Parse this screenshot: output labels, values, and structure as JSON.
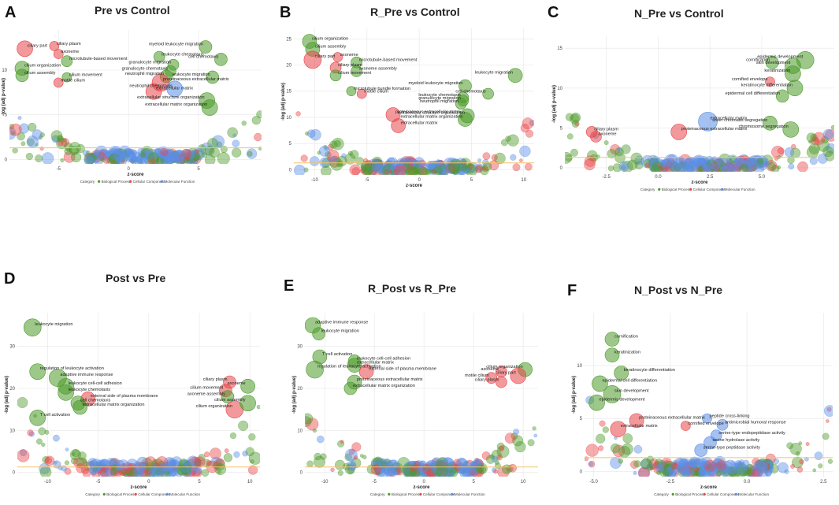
{
  "colors": {
    "biological_process": "#4d9a2a",
    "cellular_component": "#e8464a",
    "molecular_function": "#5b8ee6",
    "threshold": "#f5c36b"
  },
  "chart_data": [
    {
      "id": "A",
      "type": "scatter",
      "title": "Pre vs Control",
      "xlabel": "z-score",
      "ylabel": "-log (adj p-value)",
      "xlim": [
        -8.5,
        9.5
      ],
      "ylim": [
        -0.5,
        14.5
      ],
      "xticks": [
        -5,
        0,
        5
      ],
      "yticks": [
        0,
        5,
        10
      ],
      "threshold": 1.3,
      "legend_title": "Category",
      "legend": [
        "Biological Process",
        "Cellular Component",
        "Molecular Function"
      ],
      "points": [
        {
          "x": -7.4,
          "y": 12.4,
          "s": 10,
          "c": "cellular_component",
          "label": "ciliary part"
        },
        {
          "x": -5.3,
          "y": 12.7,
          "s": 6,
          "c": "cellular_component",
          "label": "ciliary plasm"
        },
        {
          "x": -5.0,
          "y": 11.8,
          "s": 6,
          "c": "cellular_component",
          "label": "axoneme"
        },
        {
          "x": -4.4,
          "y": 11.0,
          "s": 7,
          "c": "biological_process",
          "label": "microtubule-based movement"
        },
        {
          "x": -7.6,
          "y": 10.2,
          "s": 9,
          "c": "biological_process",
          "label": "cilium organization"
        },
        {
          "x": -7.6,
          "y": 9.4,
          "s": 8,
          "c": "biological_process",
          "label": "cilium assembly"
        },
        {
          "x": -4.4,
          "y": 9.2,
          "s": 6,
          "c": "biological_process",
          "label": "cilium movement"
        },
        {
          "x": -5.0,
          "y": 8.6,
          "s": 6,
          "c": "cellular_component",
          "label": "motile cilium"
        },
        {
          "x": 5.5,
          "y": 12.6,
          "s": 8,
          "c": "biological_process",
          "label": "myeloid leukocyte migration"
        },
        {
          "x": 2.2,
          "y": 11.5,
          "s": 7,
          "c": "biological_process",
          "label": "leukocyte chemotaxis"
        },
        {
          "x": 6.6,
          "y": 11.2,
          "s": 8,
          "c": "biological_process",
          "label": "cell chemotaxis"
        },
        {
          "x": 3.2,
          "y": 10.6,
          "s": 7,
          "c": "biological_process",
          "label": "granulocyte migration"
        },
        {
          "x": 3.0,
          "y": 9.9,
          "s": 7,
          "c": "biological_process",
          "label": "granulocyte chemotaxis"
        },
        {
          "x": 2.7,
          "y": 9.3,
          "s": 8,
          "c": "biological_process",
          "label": "neutrophil migration"
        },
        {
          "x": 6.0,
          "y": 9.2,
          "s": 8,
          "c": "biological_process",
          "label": "leukocyte migration"
        },
        {
          "x": 2.3,
          "y": 8.6,
          "s": 11,
          "c": "cellular_component",
          "label": "proteinaceous extracellular matrix"
        },
        {
          "x": 3.3,
          "y": 7.9,
          "s": 10,
          "c": "molecular_function",
          "label": "neutrophil chemotaxis"
        },
        {
          "x": 1.8,
          "y": 7.6,
          "s": 10,
          "c": "cellular_component",
          "label": "extracellular matrix"
        },
        {
          "x": 5.6,
          "y": 6.6,
          "s": 10,
          "c": "biological_process",
          "label": "extracellular structure organization"
        },
        {
          "x": 5.8,
          "y": 5.8,
          "s": 10,
          "c": "biological_process",
          "label": "extracellular matrix organization"
        }
      ]
    },
    {
      "id": "B",
      "type": "scatter",
      "title": "R_Pre vs Control",
      "xlabel": "z-score",
      "ylabel": "-log (adj p-value)",
      "xlim": [
        -12,
        11
      ],
      "ylim": [
        -1,
        27
      ],
      "xticks": [
        -10,
        -5,
        0,
        5,
        10
      ],
      "yticks": [
        0,
        5,
        10,
        15,
        20,
        25
      ],
      "threshold": 1.3,
      "legend_title": "Category",
      "legend": [
        "Biological Process",
        "Cellular Component",
        "Molecular Function"
      ],
      "points": [
        {
          "x": -10.5,
          "y": 24.5,
          "s": 9,
          "c": "biological_process",
          "label": "cilium organization"
        },
        {
          "x": -10.2,
          "y": 23.0,
          "s": 9,
          "c": "biological_process",
          "label": "cilium assembly"
        },
        {
          "x": -7.8,
          "y": 21.5,
          "s": 6,
          "c": "cellular_component",
          "label": "axoneme"
        },
        {
          "x": -6.0,
          "y": 20.5,
          "s": 7,
          "c": "biological_process",
          "label": "microtubule-based movement"
        },
        {
          "x": -10.2,
          "y": 21.0,
          "s": 11,
          "c": "cellular_component",
          "label": "ciliary part"
        },
        {
          "x": -8.0,
          "y": 19.5,
          "s": 7,
          "c": "cellular_component",
          "label": "ciliary plasm"
        },
        {
          "x": -6.0,
          "y": 18.8,
          "s": 7,
          "c": "biological_process",
          "label": "axoneme assembly"
        },
        {
          "x": -8.0,
          "y": 18.0,
          "s": 7,
          "c": "biological_process",
          "label": "cilium movement"
        },
        {
          "x": -6.5,
          "y": 15.0,
          "s": 6,
          "c": "biological_process",
          "label": "microtubule bundle formation"
        },
        {
          "x": -5.5,
          "y": 14.5,
          "s": 6,
          "c": "cellular_component",
          "label": "motile cilium"
        },
        {
          "x": 9.2,
          "y": 18.0,
          "s": 9,
          "c": "biological_process",
          "label": "leukocyte migration"
        },
        {
          "x": 4.4,
          "y": 16.0,
          "s": 8,
          "c": "biological_process",
          "label": "myeloid leukocyte migration"
        },
        {
          "x": 6.6,
          "y": 14.5,
          "s": 7,
          "c": "biological_process",
          "label": "cell chemotaxis"
        },
        {
          "x": 4.2,
          "y": 13.8,
          "s": 7,
          "c": "biological_process",
          "label": "leukocyte chemotaxis"
        },
        {
          "x": 4.2,
          "y": 13.2,
          "s": 7,
          "c": "biological_process",
          "label": "granulocyte migration"
        },
        {
          "x": 4.0,
          "y": 12.6,
          "s": 7,
          "c": "biological_process",
          "label": "neutrophil migration"
        },
        {
          "x": -2.5,
          "y": 10.5,
          "s": 9,
          "c": "cellular_component",
          "label": "proteinaceous extracellular matrix"
        },
        {
          "x": 4.6,
          "y": 10.3,
          "s": 9,
          "c": "biological_process",
          "label": "extracellular structure organization"
        },
        {
          "x": 4.4,
          "y": 9.6,
          "s": 9,
          "c": "biological_process",
          "label": "extracellular matrix organization"
        },
        {
          "x": -2.0,
          "y": 8.4,
          "s": 9,
          "c": "cellular_component",
          "label": "extracellular matrix"
        }
      ]
    },
    {
      "id": "C",
      "type": "scatter",
      "title": "N_Pre vs Control",
      "xlabel": "z-score",
      "ylabel": "-log (adj p-value)",
      "xlim": [
        -4.5,
        8.5
      ],
      "ylim": [
        -0.5,
        16.5
      ],
      "xticks": [
        -2.5,
        0.0,
        2.5,
        5.0
      ],
      "yticks": [
        0,
        5,
        10,
        15
      ],
      "threshold": 1.3,
      "legend_title": "Category",
      "legend": [
        "Biological Process",
        "Cellular Component",
        "Molecular Function"
      ],
      "points": [
        {
          "x": 7.1,
          "y": 13.5,
          "s": 11,
          "c": "biological_process",
          "label": "epidermis development"
        },
        {
          "x": 6.5,
          "y": 12.8,
          "s": 10,
          "c": "biological_process",
          "label": "skin development"
        },
        {
          "x": 5.5,
          "y": 13.2,
          "s": 8,
          "c": "biological_process",
          "label": "cornification"
        },
        {
          "x": 6.5,
          "y": 11.8,
          "s": 10,
          "c": "biological_process",
          "label": "keratinization"
        },
        {
          "x": 5.4,
          "y": 10.8,
          "s": 6,
          "c": "cellular_component",
          "label": "cornified envelope"
        },
        {
          "x": 6.6,
          "y": 10.0,
          "s": 10,
          "c": "biological_process",
          "label": "keratinocyte differentiation"
        },
        {
          "x": 6.0,
          "y": 9.0,
          "s": 8,
          "c": "biological_process",
          "label": "epidermal cell differentiation"
        },
        {
          "x": 5.4,
          "y": 5.6,
          "s": 9,
          "c": "biological_process",
          "label": "sister chromatid segregation"
        },
        {
          "x": 6.4,
          "y": 4.8,
          "s": 10,
          "c": "biological_process",
          "label": "chromosome segregation"
        },
        {
          "x": 2.4,
          "y": 5.8,
          "s": 12,
          "c": "molecular_function",
          "label": "extracellular matrix"
        },
        {
          "x": 1.0,
          "y": 4.5,
          "s": 10,
          "c": "cellular_component",
          "label": "proteinaceous extracellular matrix"
        },
        {
          "x": -3.2,
          "y": 4.5,
          "s": 7,
          "c": "cellular_component",
          "label": "ciliary plasm"
        },
        {
          "x": -3.0,
          "y": 3.9,
          "s": 7,
          "c": "cellular_component",
          "label": "axoneme"
        }
      ]
    },
    {
      "id": "D",
      "type": "scatter",
      "title": "Post vs Pre",
      "xlabel": "z-score",
      "ylabel": "-log (adj p-value)",
      "xlim": [
        -13,
        11
      ],
      "ylim": [
        -1,
        38
      ],
      "xticks": [
        -10,
        -5,
        0,
        5,
        10
      ],
      "yticks": [
        0,
        10,
        20,
        30
      ],
      "threshold": 1.3,
      "legend_title": "Category",
      "legend": [
        "Biological Process",
        "Cellular Component",
        "Molecular Function"
      ],
      "points": [
        {
          "x": -11.5,
          "y": 34.5,
          "s": 11,
          "c": "biological_process",
          "label": "leukocyte migration"
        },
        {
          "x": -11.0,
          "y": 24.0,
          "s": 10,
          "c": "biological_process",
          "label": "regulation of leukocyte activation"
        },
        {
          "x": -9.0,
          "y": 22.5,
          "s": 11,
          "c": "biological_process",
          "label": "adaptive immune response"
        },
        {
          "x": -8.2,
          "y": 20.5,
          "s": 10,
          "c": "biological_process",
          "label": "leukocyte cell-cell adhesion"
        },
        {
          "x": -8.2,
          "y": 19.0,
          "s": 10,
          "c": "biological_process",
          "label": "leukocyte chemotaxis"
        },
        {
          "x": -6.0,
          "y": 17.5,
          "s": 9,
          "c": "cellular_component",
          "label": "external side of plasma membrane"
        },
        {
          "x": -7.0,
          "y": 16.5,
          "s": 9,
          "c": "biological_process",
          "label": "cell chemotaxis"
        },
        {
          "x": -6.8,
          "y": 15.5,
          "s": 9,
          "c": "biological_process",
          "label": "extracellular matrix organization"
        },
        {
          "x": -11.0,
          "y": 13.0,
          "s": 10,
          "c": "biological_process",
          "label": "T cell activation"
        },
        {
          "x": 8.0,
          "y": 21.5,
          "s": 8,
          "c": "cellular_component",
          "label": "ciliary plasm"
        },
        {
          "x": 9.8,
          "y": 20.5,
          "s": 9,
          "c": "biological_process",
          "label": "axoneme"
        },
        {
          "x": 7.6,
          "y": 19.5,
          "s": 8,
          "c": "cellular_component",
          "label": "cilium movement"
        },
        {
          "x": 7.8,
          "y": 18.0,
          "s": 8,
          "c": "biological_process",
          "label": "axoneme assembly"
        },
        {
          "x": 8.5,
          "y": 15.0,
          "s": 11,
          "c": "cellular_component",
          "label": "cilium organization"
        },
        {
          "x": 9.8,
          "y": 16.5,
          "s": 10,
          "c": "biological_process",
          "label": "cilium assembly"
        }
      ]
    },
    {
      "id": "E",
      "type": "scatter",
      "title": "R_Post vs R_Pre",
      "xlabel": "z-score",
      "ylabel": "-log (adj p-value)",
      "xlim": [
        -12,
        11.5
      ],
      "ylim": [
        -1,
        38
      ],
      "xticks": [
        -10,
        -5,
        0,
        5,
        10
      ],
      "yticks": [
        0,
        10,
        20,
        30
      ],
      "threshold": 1.3,
      "legend_title": "Category",
      "legend": [
        "Biological Process",
        "Cellular Component",
        "Molecular Function"
      ],
      "points": [
        {
          "x": -11.2,
          "y": 35.0,
          "s": 10,
          "c": "biological_process",
          "label": "adaptive immune response"
        },
        {
          "x": -10.6,
          "y": 33.0,
          "s": 8,
          "c": "biological_process",
          "label": "leukocyte migration"
        },
        {
          "x": -10.5,
          "y": 27.5,
          "s": 9,
          "c": "biological_process",
          "label": "T cell activation"
        },
        {
          "x": -7.0,
          "y": 26.5,
          "s": 8,
          "c": "biological_process",
          "label": "leukocyte cell-cell adhesion"
        },
        {
          "x": -7.0,
          "y": 25.5,
          "s": 9,
          "c": "biological_process",
          "label": "extracellular matrix"
        },
        {
          "x": -11.0,
          "y": 24.5,
          "s": 11,
          "c": "biological_process",
          "label": "regulation of leukocyte activation"
        },
        {
          "x": -5.8,
          "y": 24.0,
          "s": 9,
          "c": "cellular_component",
          "label": "external side of plasma membrane"
        },
        {
          "x": -7.0,
          "y": 21.5,
          "s": 9,
          "c": "biological_process",
          "label": "proteinaceous extracellular matrix"
        },
        {
          "x": -7.4,
          "y": 20.0,
          "s": 8,
          "c": "biological_process",
          "label": "extracellular matrix organization"
        },
        {
          "x": 7.8,
          "y": 24.0,
          "s": 7,
          "c": "cellular_component",
          "label": "axoneme"
        },
        {
          "x": 10.2,
          "y": 24.5,
          "s": 9,
          "c": "biological_process",
          "label": "cilium organization"
        },
        {
          "x": 9.5,
          "y": 23.0,
          "s": 10,
          "c": "cellular_component",
          "label": "ciliary part"
        },
        {
          "x": 6.8,
          "y": 22.5,
          "s": 7,
          "c": "cellular_component",
          "label": "motile cilium"
        },
        {
          "x": 7.8,
          "y": 21.5,
          "s": 7,
          "c": "cellular_component",
          "label": "ciliary plasm"
        }
      ]
    },
    {
      "id": "F",
      "type": "scatter",
      "title": "N_Post vs N_Pre",
      "xlabel": "z-score",
      "ylabel": "-log (adj p-value)",
      "xlim": [
        -5.3,
        2.8
      ],
      "ylim": [
        -0.5,
        15
      ],
      "xticks": [
        -5.0,
        -2.5,
        0.0,
        2.5
      ],
      "yticks": [
        0,
        5,
        10
      ],
      "threshold": 1.3,
      "legend_title": "Category",
      "legend": [
        "Biological Process",
        "Cellular Component",
        "Molecular Function"
      ],
      "points": [
        {
          "x": -4.4,
          "y": 12.5,
          "s": 9,
          "c": "biological_process",
          "label": "cornification"
        },
        {
          "x": -4.4,
          "y": 11.0,
          "s": 9,
          "c": "biological_process",
          "label": "keratinization"
        },
        {
          "x": -4.1,
          "y": 9.3,
          "s": 9,
          "c": "biological_process",
          "label": "keratinocyte differentiation"
        },
        {
          "x": -4.8,
          "y": 8.3,
          "s": 10,
          "c": "biological_process",
          "label": "epidermal cell differentiation"
        },
        {
          "x": -4.4,
          "y": 7.3,
          "s": 11,
          "c": "biological_process",
          "label": "skin development"
        },
        {
          "x": -4.9,
          "y": 6.5,
          "s": 10,
          "c": "biological_process",
          "label": "epidermis development"
        },
        {
          "x": -3.6,
          "y": 4.8,
          "s": 9,
          "c": "cellular_component",
          "label": "proteinaceous extracellular matrix"
        },
        {
          "x": -4.2,
          "y": 4.0,
          "s": 10,
          "c": "cellular_component",
          "label": "extracellular matrix"
        },
        {
          "x": -2.0,
          "y": 4.3,
          "s": 6,
          "c": "cellular_component",
          "label": "cornified envelope"
        },
        {
          "x": -1.3,
          "y": 5.0,
          "s": 6,
          "c": "molecular_function",
          "label": "peptide cross-linking"
        },
        {
          "x": -0.8,
          "y": 4.4,
          "s": 7,
          "c": "molecular_function",
          "label": "antimicrobial humoral response"
        },
        {
          "x": -1.0,
          "y": 3.4,
          "s": 7,
          "c": "molecular_function",
          "label": "serine-type endopeptidase activity"
        },
        {
          "x": -1.2,
          "y": 2.7,
          "s": 8,
          "c": "molecular_function",
          "label": "serine hydrolase activity"
        },
        {
          "x": -1.5,
          "y": 2.0,
          "s": 8,
          "c": "molecular_function",
          "label": "serine-type peptidase activity"
        }
      ]
    }
  ]
}
